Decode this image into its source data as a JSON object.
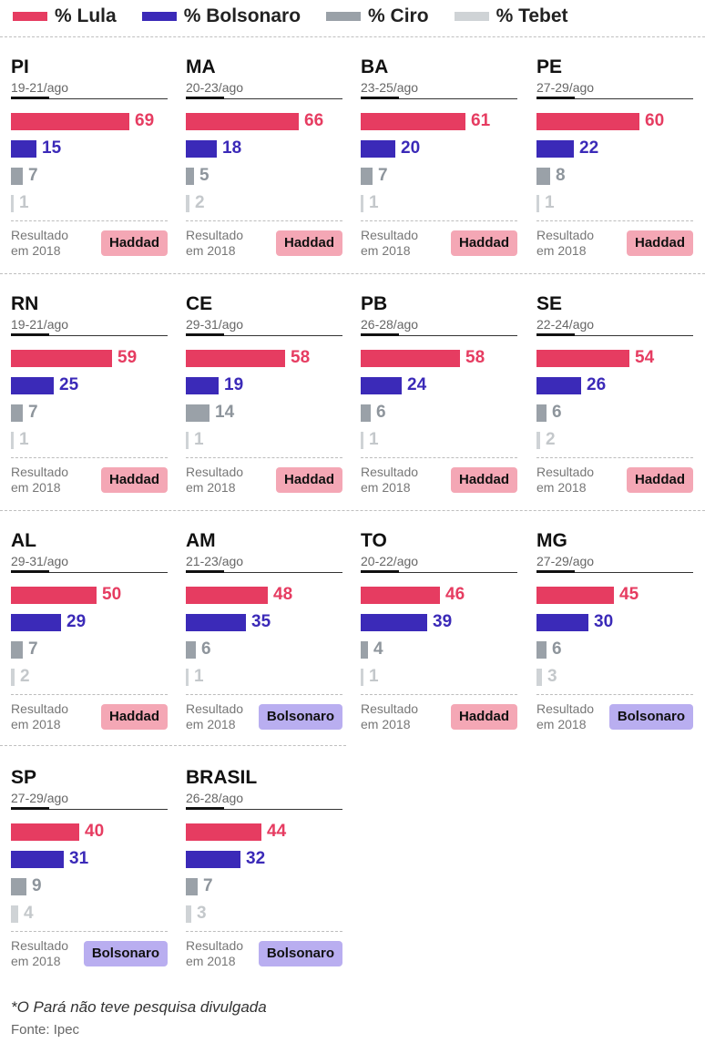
{
  "colors": {
    "lula": "#e63c61",
    "bolsonaro": "#3b2ab8",
    "ciro": "#9aa1a8",
    "tebet": "#cfd3d6",
    "badge_haddad": "#f4a7b5",
    "badge_bolsonaro": "#b9aef0"
  },
  "chart_data": {
    "type": "bar",
    "series_names": [
      "% Lula",
      "% Bolsonaro",
      "% Ciro",
      "% Tebet"
    ],
    "x_max": 69,
    "panels": [
      {
        "state": "PI",
        "date": "19-21/ago",
        "values": [
          69,
          15,
          7,
          1
        ],
        "result_label": "Resultado em 2018",
        "result": "Haddad"
      },
      {
        "state": "MA",
        "date": "20-23/ago",
        "values": [
          66,
          18,
          5,
          2
        ],
        "result_label": "Resultado em 2018",
        "result": "Haddad"
      },
      {
        "state": "BA",
        "date": "23-25/ago",
        "values": [
          61,
          20,
          7,
          1
        ],
        "result_label": "Resultado em 2018",
        "result": "Haddad"
      },
      {
        "state": "PE",
        "date": "27-29/ago",
        "values": [
          60,
          22,
          8,
          1
        ],
        "result_label": "Resultado em 2018",
        "result": "Haddad"
      },
      {
        "state": "RN",
        "date": "19-21/ago",
        "values": [
          59,
          25,
          7,
          1
        ],
        "result_label": "Resultado em 2018",
        "result": "Haddad"
      },
      {
        "state": "CE",
        "date": "29-31/ago",
        "values": [
          58,
          19,
          14,
          1
        ],
        "result_label": "Resultado em 2018",
        "result": "Haddad"
      },
      {
        "state": "PB",
        "date": "26-28/ago",
        "values": [
          58,
          24,
          6,
          1
        ],
        "result_label": "Resultado em 2018",
        "result": "Haddad"
      },
      {
        "state": "SE",
        "date": "22-24/ago",
        "values": [
          54,
          26,
          6,
          2
        ],
        "result_label": "Resultado em 2018",
        "result": "Haddad"
      },
      {
        "state": "AL",
        "date": "29-31/ago",
        "values": [
          50,
          29,
          7,
          2
        ],
        "result_label": "Resultado em 2018",
        "result": "Haddad"
      },
      {
        "state": "AM",
        "date": "21-23/ago",
        "values": [
          48,
          35,
          6,
          1
        ],
        "result_label": "Resultado em 2018",
        "result": "Bolsonaro"
      },
      {
        "state": "TO",
        "date": "20-22/ago",
        "values": [
          46,
          39,
          4,
          1
        ],
        "result_label": "Resultado em 2018",
        "result": "Haddad"
      },
      {
        "state": "MG",
        "date": "27-29/ago",
        "values": [
          45,
          30,
          6,
          3
        ],
        "result_label": "Resultado em 2018",
        "result": "Bolsonaro"
      },
      {
        "state": "SP",
        "date": "27-29/ago",
        "values": [
          40,
          31,
          9,
          4
        ],
        "result_label": "Resultado em 2018",
        "result": "Bolsonaro"
      },
      {
        "state": "BRASIL",
        "date": "26-28/ago",
        "values": [
          44,
          32,
          7,
          3
        ],
        "result_label": "Resultado em 2018",
        "result": "Bolsonaro"
      }
    ]
  },
  "footer": {
    "note": "*O Pará não teve pesquisa divulgada",
    "source": "Fonte: Ipec"
  }
}
